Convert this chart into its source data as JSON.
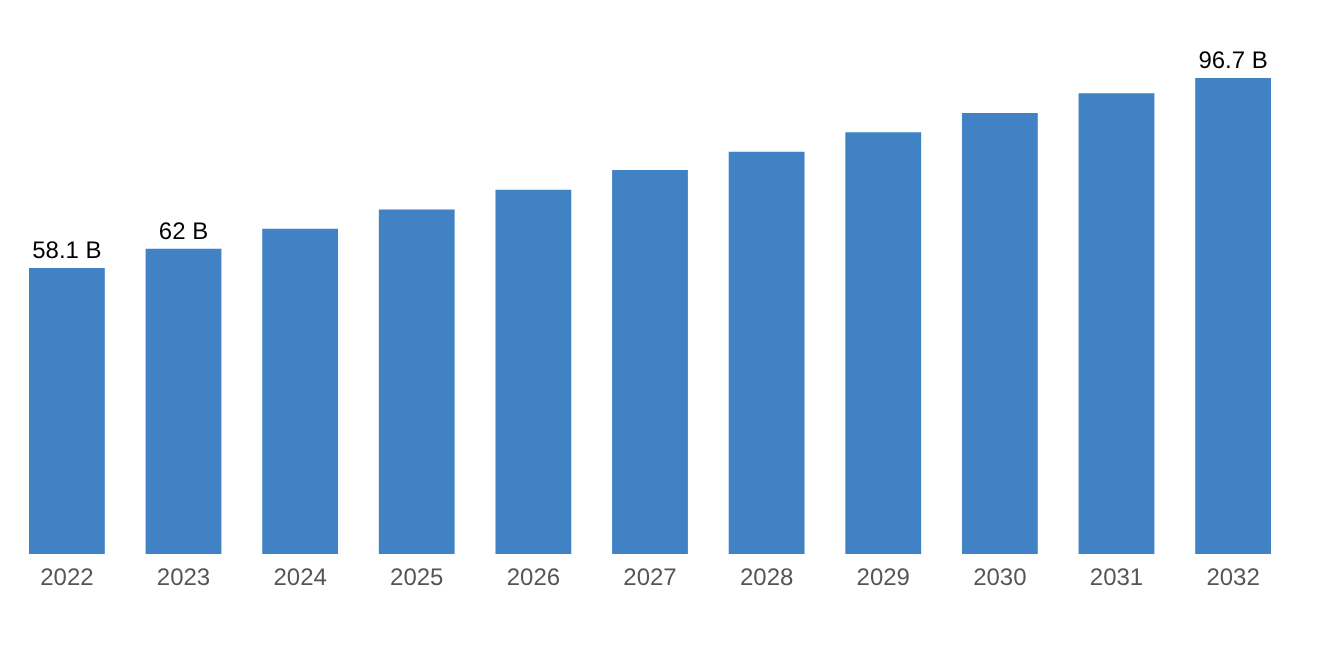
{
  "chart_data": {
    "type": "bar",
    "categories": [
      "2022",
      "2023",
      "2024",
      "2025",
      "2026",
      "2027",
      "2028",
      "2029",
      "2030",
      "2031",
      "2032"
    ],
    "values": [
      58.1,
      62,
      66.1,
      70.0,
      74.0,
      78.0,
      81.7,
      85.7,
      89.6,
      93.6,
      96.7
    ],
    "value_labels": [
      "58.1 B",
      "62 B",
      null,
      null,
      null,
      null,
      null,
      null,
      null,
      null,
      "96.7 B"
    ],
    "color": "#4182c5"
  }
}
